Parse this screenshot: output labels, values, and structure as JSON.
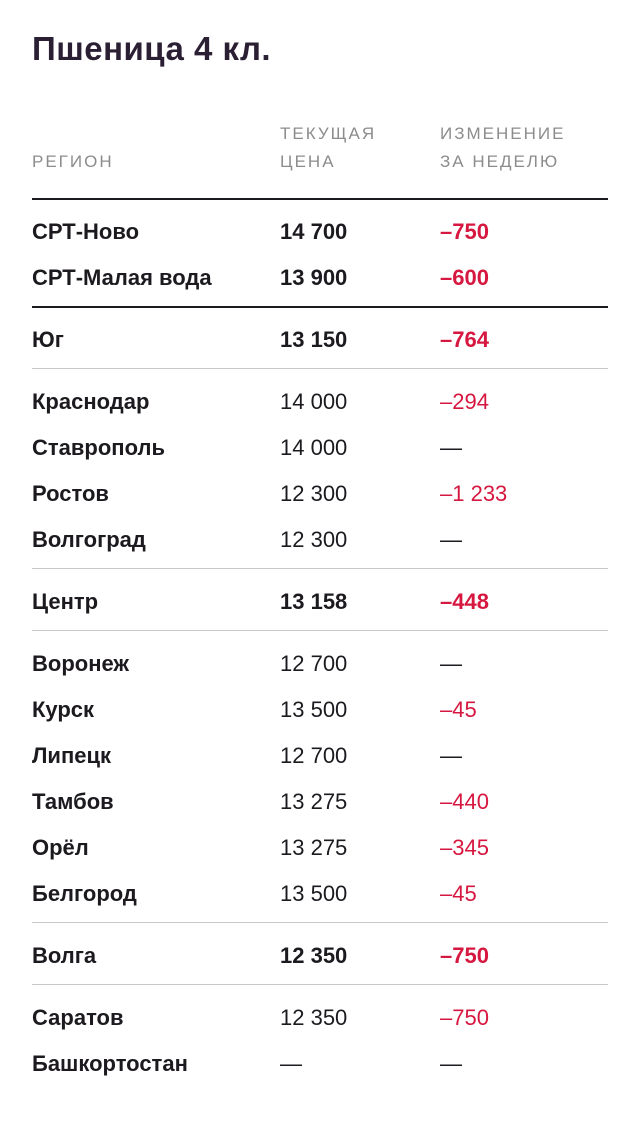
{
  "title": "Пшеница 4 кл.",
  "headers": {
    "region": "РЕГИОН",
    "price_line1": "ТЕКУЩАЯ",
    "price_line2": "ЦЕНА",
    "change_line1": "ИЗМЕНЕНИЕ",
    "change_line2": "ЗА НЕДЕЛЮ"
  },
  "colors": {
    "negative": "#d6173f",
    "text": "#1c1a1f",
    "muted": "#8c8c8c"
  },
  "rows": [
    {
      "region": "СРТ-Ново",
      "price": "14 700",
      "change": "–750"
    },
    {
      "region": "СРТ-Малая вода",
      "price": "13 900",
      "change": "–600"
    },
    {
      "region": "Юг",
      "price": "13 150",
      "change": "–764"
    },
    {
      "region": "Краснодар",
      "price": "14 000",
      "change": "–294"
    },
    {
      "region": "Ставрополь",
      "price": "14 000",
      "change": "—"
    },
    {
      "region": "Ростов",
      "price": "12 300",
      "change": "–1 233"
    },
    {
      "region": "Волгоград",
      "price": "12 300",
      "change": "—"
    },
    {
      "region": "Центр",
      "price": "13 158",
      "change": "–448"
    },
    {
      "region": "Воронеж",
      "price": "12 700",
      "change": "—"
    },
    {
      "region": "Курск",
      "price": "13 500",
      "change": "–45"
    },
    {
      "region": "Липецк",
      "price": "12 700",
      "change": "—"
    },
    {
      "region": "Тамбов",
      "price": "13 275",
      "change": "–440"
    },
    {
      "region": "Орёл",
      "price": "13 275",
      "change": "–345"
    },
    {
      "region": "Белгород",
      "price": "13 500",
      "change": "–45"
    },
    {
      "region": "Волга",
      "price": "12 350",
      "change": "–750"
    },
    {
      "region": "Саратов",
      "price": "12 350",
      "change": "–750"
    },
    {
      "region": "Башкортостан",
      "price": "—",
      "change": "—"
    }
  ]
}
